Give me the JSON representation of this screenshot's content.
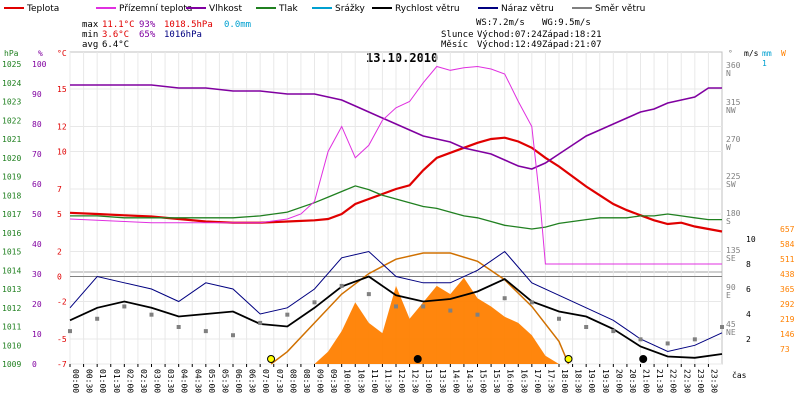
{
  "legend": [
    {
      "label": "Teplota",
      "color": "#e00000"
    },
    {
      "label": "Přízemní teplota",
      "color": "#e030e0"
    },
    {
      "label": "Vlhkost",
      "color": "#8000a0"
    },
    {
      "label": "Tlak",
      "color": "#208020"
    },
    {
      "label": "Srážky",
      "color": "#00a0d0"
    },
    {
      "label": "Rychlost větru",
      "color": "#000000"
    },
    {
      "label": "Náraz větru",
      "color": "#000080"
    },
    {
      "label": "Směr větru",
      "color": "#808080"
    }
  ],
  "stats": {
    "max": {
      "label": "max",
      "temp": "11.1°C",
      "hum": "93%",
      "press": "1018.5hPa",
      "rain": "0.0mm"
    },
    "min": {
      "label": "min",
      "temp": "3.6°C",
      "hum": "65%",
      "press": "1016hPa"
    },
    "avg": {
      "label": "avg",
      "temp": "6.4°C"
    }
  },
  "wind": {
    "ws": "WS:7.2m/s",
    "wg": "WG:9.5m/s"
  },
  "sun": {
    "label": "Slunce",
    "rise": "Východ:07:24",
    "set": "Západ:18:21"
  },
  "moon": {
    "label": "Měsíc",
    "rise": "Východ:12:49",
    "set": "Západ:21:07"
  },
  "axis_units": {
    "hpa": "hPa",
    "pct": "%",
    "temp": "°C",
    "deg": "°",
    "ms": "m/s",
    "mm": "mm",
    "wm2": "W",
    "time": "čas"
  },
  "chart_data": {
    "type": "line",
    "title": "13.10.2010",
    "xlabel": "čas",
    "x_ticks": [
      "00:00",
      "00:30",
      "01:00",
      "01:30",
      "02:00",
      "02:30",
      "03:00",
      "03:30",
      "04:00",
      "04:30",
      "05:00",
      "05:30",
      "06:00",
      "06:30",
      "07:00",
      "07:30",
      "08:00",
      "08:30",
      "09:00",
      "09:30",
      "10:00",
      "10:30",
      "11:00",
      "11:30",
      "12:00",
      "12:30",
      "13:00",
      "13:30",
      "14:00",
      "14:30",
      "15:00",
      "15:30",
      "16:00",
      "16:30",
      "17:00",
      "17:30",
      "18:00",
      "18:30",
      "19:00",
      "19:30",
      "20:00",
      "20:30",
      "21:00",
      "21:30",
      "22:00",
      "22:30",
      "23:00",
      "23:30"
    ],
    "y_axes": {
      "pressure_hpa": {
        "ticks": [
          "1025",
          "1024",
          "1023",
          "1022",
          "1021",
          "1020",
          "1019",
          "1018",
          "1017",
          "1016",
          "1015",
          "1014",
          "1013",
          "1012",
          "1011",
          "1010",
          "1009"
        ],
        "range": [
          1009,
          1025
        ]
      },
      "humidity_pct": {
        "ticks": [
          "100",
          "90",
          "80",
          "70",
          "60",
          "50",
          "40",
          "30",
          "20",
          "10",
          "0"
        ],
        "range": [
          0,
          100
        ]
      },
      "temperature_c": {
        "ticks": [
          "15",
          "12",
          "10",
          "7",
          "5",
          "2",
          "0",
          "-2",
          "-5",
          "-7"
        ],
        "range": [
          -7,
          17
        ]
      },
      "wind_dir": {
        "ticks": [
          "360 N",
          "315 NW",
          "270 W",
          "225 SW",
          "180 S",
          "135 SE",
          "90 E",
          "45 NE"
        ]
      },
      "wind_ms": {
        "ticks": [
          "10",
          "8",
          "6",
          "4",
          "2"
        ],
        "range": [
          0,
          12
        ]
      },
      "rain_mm": {
        "ticks": [
          "1"
        ]
      },
      "solar_wm2": {
        "ticks": [
          "657",
          "584",
          "511",
          "438",
          "365",
          "292",
          "219",
          "146",
          "73"
        ],
        "range": [
          0,
          730
        ]
      }
    },
    "series": [
      {
        "name": "Teplota",
        "color": "#e00000",
        "x": [
          0,
          1,
          2,
          3,
          4,
          5,
          6,
          7,
          8,
          9,
          9.5,
          10,
          10.5,
          11,
          11.5,
          12,
          12.5,
          13,
          13.5,
          14,
          14.5,
          15,
          15.5,
          16,
          16.5,
          17,
          17.5,
          18,
          18.5,
          19,
          19.5,
          20,
          20.5,
          21,
          21.5,
          22,
          22.5,
          23,
          23.5,
          24
        ],
        "y": [
          5.1,
          5.0,
          4.9,
          4.8,
          4.6,
          4.4,
          4.3,
          4.3,
          4.4,
          4.5,
          4.6,
          5.0,
          5.8,
          6.2,
          6.6,
          7.0,
          7.3,
          8.5,
          9.5,
          9.9,
          10.3,
          10.7,
          11.0,
          11.1,
          10.8,
          10.3,
          9.5,
          8.8,
          8.0,
          7.2,
          6.5,
          5.8,
          5.3,
          4.9,
          4.5,
          4.2,
          4.3,
          4.0,
          3.8,
          3.6
        ]
      },
      {
        "name": "Vlhkost",
        "color": "#8000a0",
        "x": [
          0,
          1,
          2,
          3,
          4,
          5,
          6,
          7,
          8,
          9,
          9.5,
          10,
          10.5,
          11,
          11.5,
          12,
          12.5,
          13,
          13.5,
          14,
          14.5,
          15,
          15.5,
          16,
          16.5,
          17,
          17.5,
          18,
          18.5,
          19,
          19.5,
          20,
          20.5,
          21,
          21.5,
          22,
          22.5,
          23,
          23.5,
          24
        ],
        "y": [
          93,
          93,
          93,
          93,
          92,
          92,
          91,
          91,
          90,
          90,
          89,
          88,
          86,
          84,
          82,
          80,
          78,
          76,
          75,
          74,
          72,
          71,
          70,
          68,
          66,
          65,
          67,
          70,
          73,
          76,
          78,
          80,
          82,
          84,
          85,
          87,
          88,
          89,
          92,
          92
        ]
      },
      {
        "name": "Tlak",
        "color": "#208020",
        "x": [
          0,
          1,
          2,
          3,
          4,
          5,
          6,
          7,
          8,
          9,
          9.5,
          10,
          10.5,
          11,
          11.5,
          12,
          12.5,
          13,
          13.5,
          14,
          14.5,
          15,
          15.5,
          16,
          16.5,
          17,
          17.5,
          18,
          18.5,
          19,
          19.5,
          20,
          20.5,
          21,
          21.5,
          22,
          22.5,
          23,
          23.5,
          24
        ],
        "y": [
          1016.9,
          1016.9,
          1016.8,
          1016.8,
          1016.8,
          1016.8,
          1016.8,
          1016.9,
          1017.1,
          1017.6,
          1017.9,
          1018.2,
          1018.5,
          1018.3,
          1018.0,
          1017.8,
          1017.6,
          1017.4,
          1017.3,
          1017.1,
          1016.9,
          1016.8,
          1016.6,
          1016.4,
          1016.3,
          1016.2,
          1016.3,
          1016.5,
          1016.6,
          1016.7,
          1016.8,
          1016.8,
          1016.8,
          1016.9,
          1016.9,
          1017.0,
          1016.9,
          1016.8,
          1016.7,
          1016.7
        ]
      },
      {
        "name": "Přízemní teplota",
        "color": "#e030e0",
        "x": [
          0,
          1,
          2,
          3,
          4,
          5,
          6,
          7,
          8,
          8.5,
          9,
          9.5,
          10,
          10.5,
          11,
          11.5,
          12,
          12.5,
          13,
          13.5,
          14,
          14.5,
          15,
          15.5,
          16,
          16.5,
          17,
          17.3,
          17.5,
          18,
          19,
          20,
          21,
          22,
          23,
          24
        ],
        "y": [
          4.6,
          4.5,
          4.4,
          4.3,
          4.3,
          4.3,
          4.3,
          4.3,
          4.6,
          5.0,
          6.0,
          10.0,
          12.0,
          9.5,
          10.5,
          12.5,
          13.5,
          14.0,
          15.5,
          16.8,
          16.5,
          16.7,
          16.8,
          16.6,
          16.2,
          14.0,
          12.0,
          6.0,
          1.0,
          1.0,
          1.0,
          1.0,
          1.0,
          1.0,
          1.0,
          1.0
        ]
      },
      {
        "name": "Rychlost větru",
        "color": "#000000",
        "x": [
          0,
          1,
          2,
          3,
          4,
          5,
          6,
          7,
          8,
          9,
          10,
          11,
          12,
          13,
          14,
          15,
          16,
          17,
          18,
          19,
          20,
          21,
          22,
          23,
          24
        ],
        "y": [
          3.5,
          4.5,
          5.0,
          4.5,
          3.8,
          4.0,
          4.2,
          3.2,
          3.0,
          4.5,
          6.2,
          7.0,
          5.5,
          5.0,
          5.2,
          5.8,
          6.8,
          5.0,
          4.2,
          3.8,
          2.8,
          1.4,
          0.6,
          0.5,
          0.8
        ]
      },
      {
        "name": "Náraz větru",
        "color": "#000080",
        "x": [
          0,
          1,
          2,
          3,
          4,
          5,
          6,
          7,
          8,
          9,
          10,
          11,
          12,
          13,
          14,
          15,
          16,
          17,
          18,
          19,
          20,
          21,
          22,
          23,
          24
        ],
        "y": [
          4.5,
          7.0,
          6.5,
          6.0,
          5.0,
          6.5,
          6.0,
          4.0,
          4.5,
          6.0,
          8.5,
          9.0,
          7.0,
          6.5,
          6.5,
          7.5,
          9.0,
          6.5,
          5.5,
          4.5,
          3.5,
          2.0,
          1.0,
          1.5,
          2.5
        ]
      },
      {
        "name": "Směr větru",
        "color": "#808080",
        "x": [
          0,
          1,
          2,
          3,
          4,
          5,
          6,
          7,
          8,
          9,
          10,
          11,
          12,
          13,
          14,
          15,
          16,
          17,
          18,
          19,
          20,
          21,
          22,
          23,
          24
        ],
        "y": [
          40,
          55,
          70,
          60,
          45,
          40,
          35,
          50,
          60,
          75,
          95,
          85,
          70,
          70,
          65,
          60,
          80,
          75,
          55,
          45,
          40,
          30,
          25,
          30,
          45
        ]
      }
    ],
    "solar": {
      "name": "Sluneční záření",
      "color": "#ff8000",
      "x": [
        9,
        9.5,
        10,
        10.5,
        11,
        11.5,
        12,
        12.5,
        13,
        13.5,
        14,
        14.5,
        15,
        15.5,
        16,
        16.5,
        17,
        17.5,
        18
      ],
      "y": [
        0,
        60,
        160,
        300,
        200,
        150,
        380,
        220,
        300,
        380,
        340,
        420,
        320,
        280,
        230,
        200,
        140,
        40,
        0
      ]
    },
    "solar_theoretical": {
      "x": [
        7.4,
        8,
        9,
        10,
        11,
        12,
        13,
        14,
        15,
        16,
        17,
        18,
        18.35
      ],
      "y": [
        0,
        60,
        200,
        340,
        440,
        510,
        540,
        540,
        500,
        410,
        280,
        110,
        0
      ]
    },
    "markers": [
      {
        "label": "sunrise",
        "x": 7.4,
        "color": "#ffff00"
      },
      {
        "label": "moonrise",
        "x": 12.8,
        "color": "#000000"
      },
      {
        "label": "sunset",
        "x": 18.35,
        "color": "#ffff00"
      },
      {
        "label": "moonset",
        "x": 21.1,
        "color": "#000000"
      }
    ]
  }
}
